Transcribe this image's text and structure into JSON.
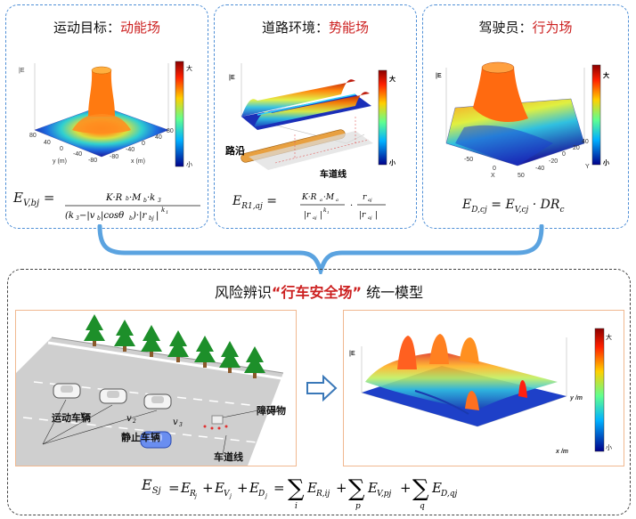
{
  "panels": {
    "kinetic": {
      "title_prefix": "运动目标：",
      "title_highlight": "动能场",
      "zlabel": "|E",
      "colorbar_max": "大",
      "colorbar_min": "小",
      "xlabel": "x (m)",
      "ylabel": "y (m)",
      "ticks_left": [
        "80",
        "40",
        "0",
        "-40",
        "-80"
      ],
      "ticks_right": [
        "-80",
        "-40",
        "0",
        "40",
        "80"
      ],
      "formula_lhs": "E",
      "formula_lhs_sub": "V,bj",
      "formula_num": "K·R",
      "formula_den": "(k",
      "formula_exp": "k"
    },
    "potential": {
      "title_prefix": "道路环境：",
      "title_highlight": "势能场",
      "zlabel": "|E",
      "colorbar_max": "大",
      "colorbar_min": "小",
      "curb_label": "路沿",
      "lane_label": "车道线",
      "formula_lhs": "E",
      "formula_lhs_sub": "R1,aj"
    },
    "behavior": {
      "title_prefix": "驾驶员：",
      "title_highlight": "行为场",
      "zlabel": "|E",
      "colorbar_max": "大",
      "colorbar_min": "小",
      "xlabel": "X",
      "ylabel": "Y",
      "ticks_x": [
        "-50",
        "0",
        "50"
      ],
      "ticks_y": [
        "-40",
        "-20",
        "0",
        "20",
        "40"
      ],
      "formula": "E",
      "formula_sub": "D,cj",
      "formula_mid": " = E",
      "formula_mid_sub": "V,cj",
      "formula_tail": " · DR",
      "formula_tail_sub": "c"
    }
  },
  "unified": {
    "title_prefix": "风险辨识",
    "title_highlight": "“行车安全场”",
    "title_suffix": "统一模型",
    "scene": {
      "moving_label": "运动车辆",
      "static_label": "静止车辆",
      "lane_label": "车道线",
      "obstacle_label": "障碍物",
      "v_labels": [
        "v",
        "v",
        "v"
      ],
      "v_subs": [
        "1",
        "2",
        "3"
      ]
    },
    "field": {
      "zlabel": "|E",
      "colorbar_max": "大",
      "colorbar_min": "小",
      "xlabel": "x /m",
      "ylabel": "y /m"
    },
    "formula": "E",
    "formula_sub": "Sj"
  },
  "colors": {
    "panel_border": "#4f8fd6",
    "bracket": "#5ba3e0",
    "highlight_red": "#cc1f1f",
    "scene_border": "#f0b890",
    "arrow": "#3a78b8"
  }
}
